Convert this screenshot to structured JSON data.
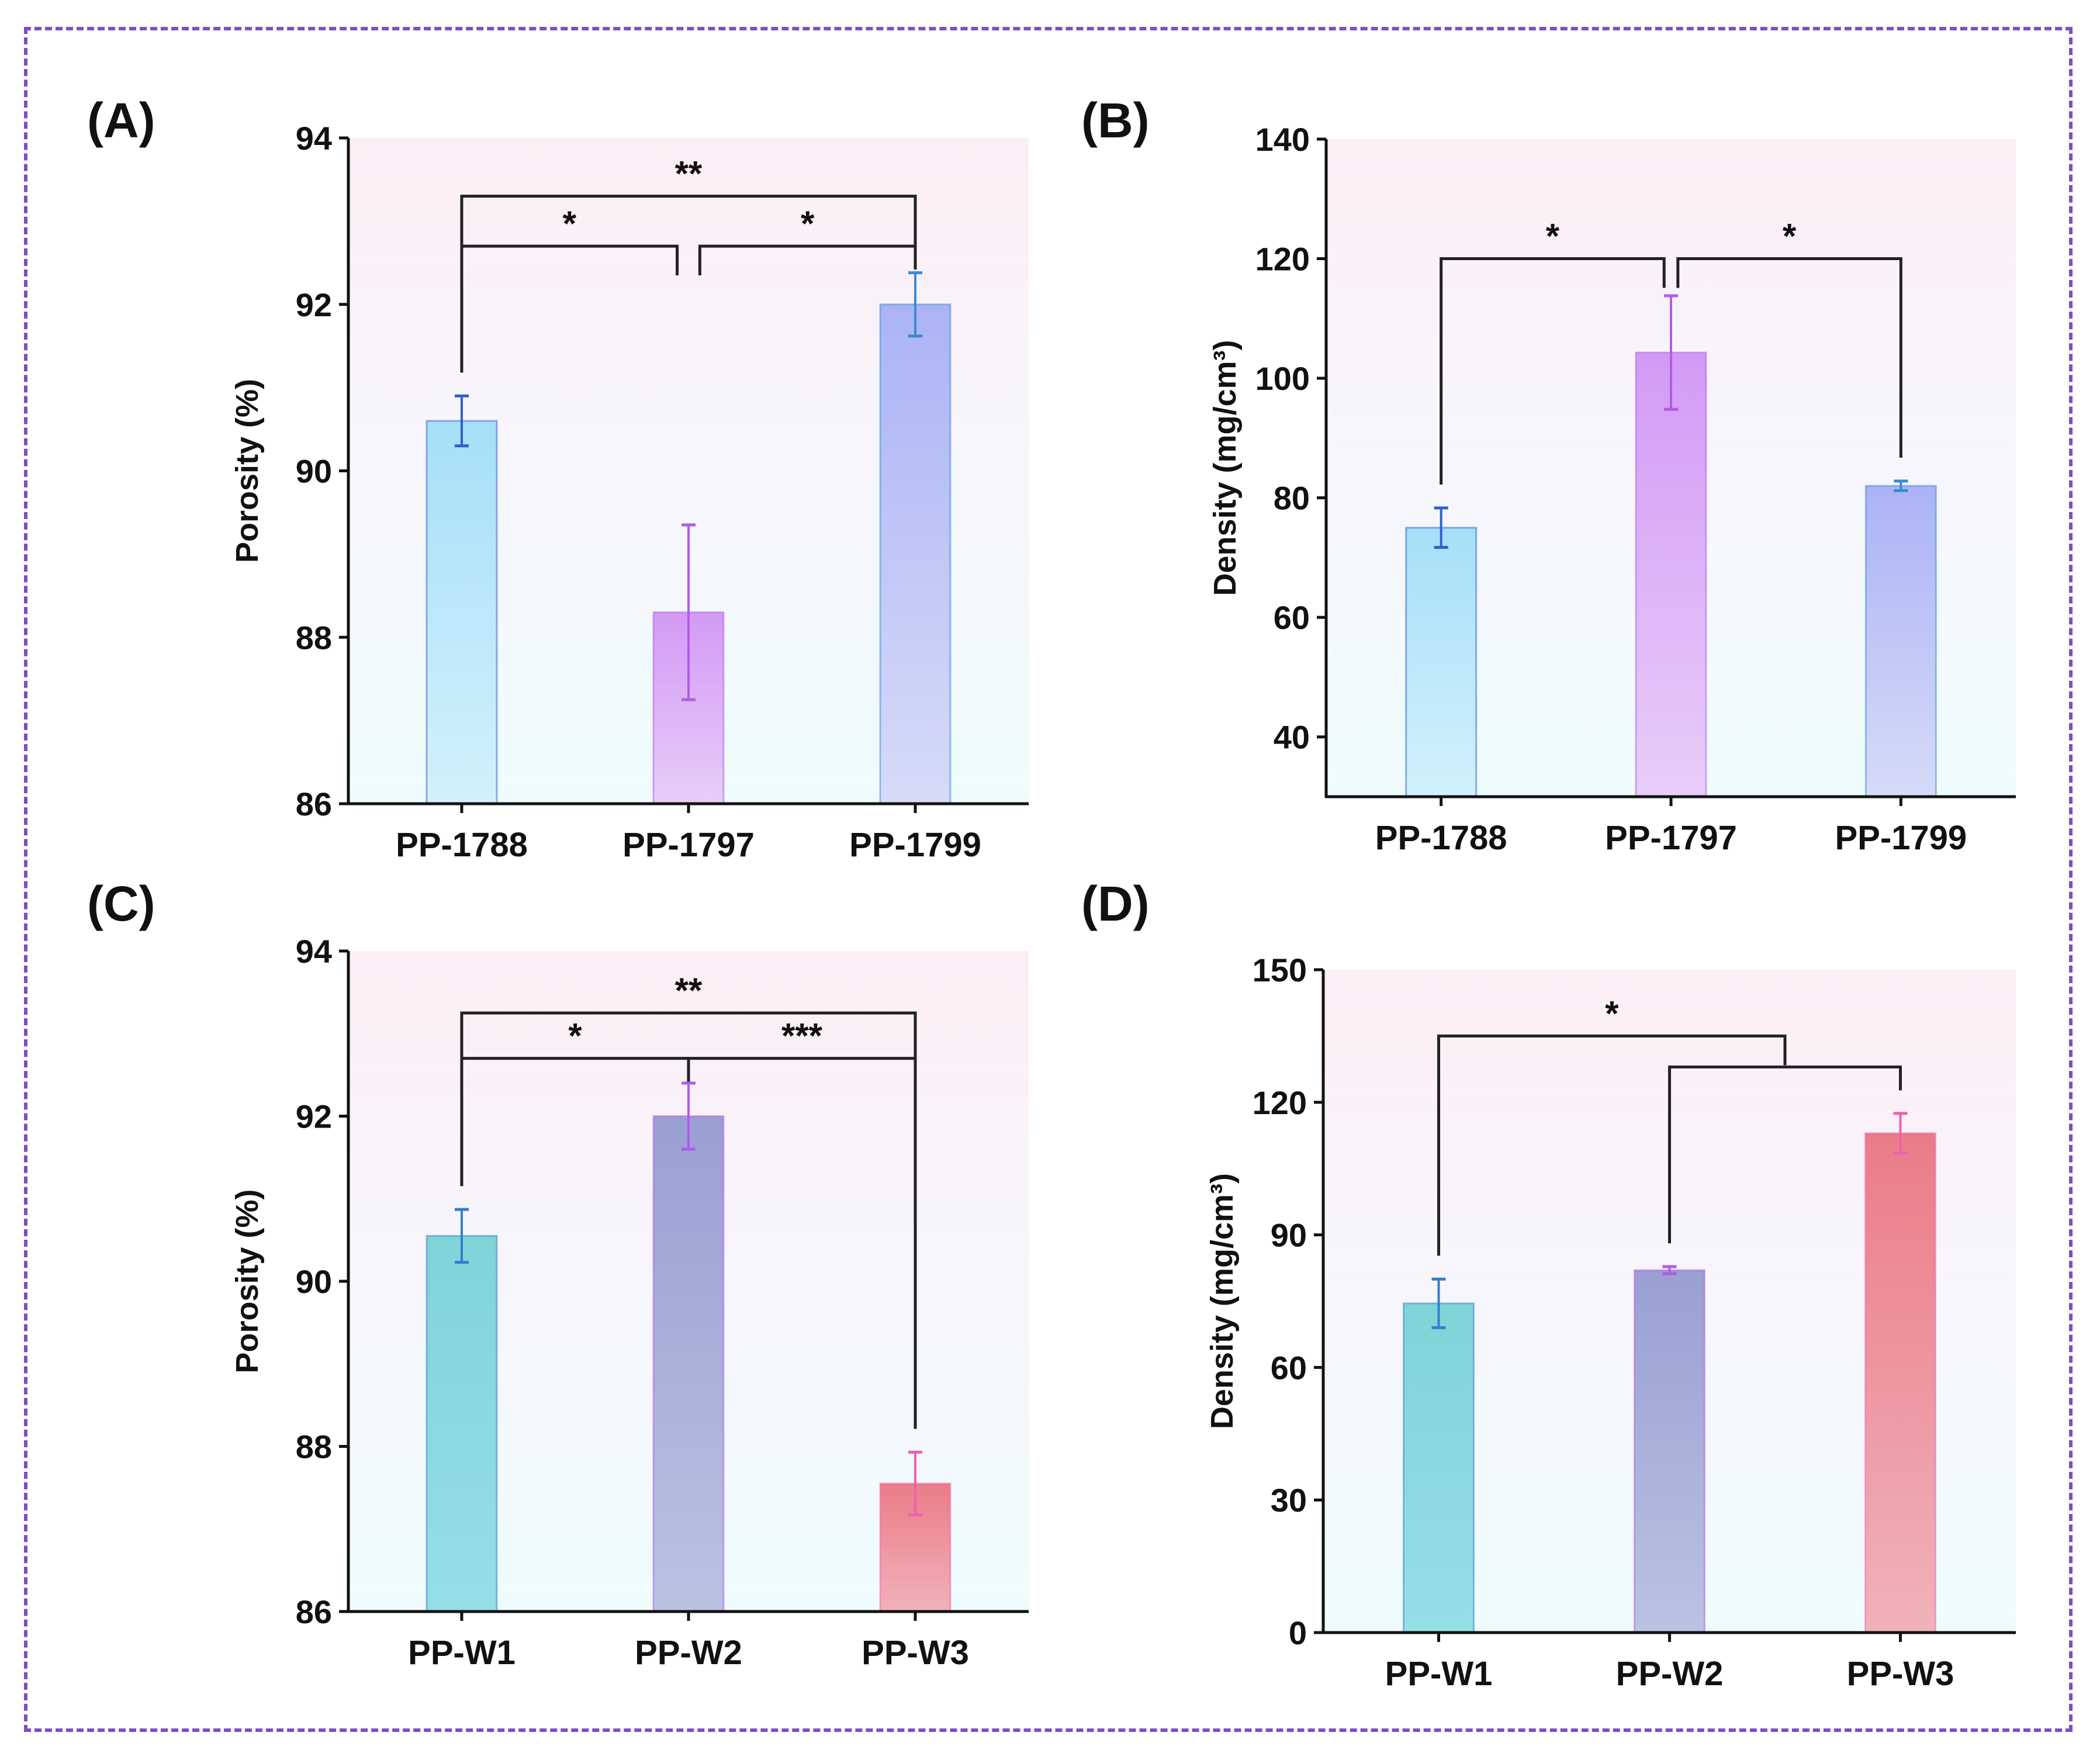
{
  "chart_data": [
    {
      "panel": "(A)",
      "type": "bar",
      "categories": [
        "PP-1788",
        "PP-1797",
        "PP-1799"
      ],
      "values": [
        90.6,
        88.3,
        92.0
      ],
      "errors": [
        0.3,
        1.05,
        0.38
      ],
      "ylabel": "Porosity (%)",
      "ylim": [
        86,
        94
      ],
      "yticks": [
        "86",
        "88",
        "90",
        "92",
        "94"
      ],
      "colors": [
        [
          "#a6dff8",
          "#d2f1fb"
        ],
        [
          "#d39af5",
          "#e8cdf9"
        ],
        [
          "#abb3f5",
          "#d6dbf8"
        ]
      ],
      "error_colors": [
        "#2f5fd0",
        "#b05be8",
        "#3a8ad0"
      ],
      "brackets": [
        {
          "from": 0,
          "to": 2,
          "level": 93.3,
          "label": "**"
        },
        {
          "from": 0,
          "to": 0.95,
          "level": 92.7,
          "label": "*"
        },
        {
          "from": 1.05,
          "to": 2,
          "level": 92.7,
          "label": "*"
        }
      ]
    },
    {
      "panel": "(B)",
      "type": "bar",
      "categories": [
        "PP-1788",
        "PP-1797",
        "PP-1799"
      ],
      "values": [
        75,
        104.3,
        82
      ],
      "errors": [
        3.3,
        9.5,
        0.8
      ],
      "ylabel": "Density (mg/cm³)",
      "ylim": [
        30,
        140
      ],
      "yticks": [
        "40",
        "60",
        "80",
        "100",
        "120",
        "140"
      ],
      "colors": [
        [
          "#a6dff8",
          "#d2f1fb"
        ],
        [
          "#d39af5",
          "#e8cdf9"
        ],
        [
          "#abb3f5",
          "#d6dbf8"
        ]
      ],
      "error_colors": [
        "#2f5fd0",
        "#b05be8",
        "#3a8ad0"
      ],
      "brackets": [
        {
          "from": 0,
          "to": 0.97,
          "level": 120,
          "label": "*"
        },
        {
          "from": 1.03,
          "to": 2,
          "level": 120,
          "label": "*"
        }
      ]
    },
    {
      "panel": "(C)",
      "type": "bar",
      "categories": [
        "PP-W1",
        "PP-W2",
        "PP-W3"
      ],
      "values": [
        90.55,
        92.0,
        87.55
      ],
      "errors": [
        0.32,
        0.4,
        0.38
      ],
      "ylabel": "Porosity (%)",
      "ylim": [
        86,
        94
      ],
      "yticks": [
        "86",
        "88",
        "90",
        "92",
        "94"
      ],
      "colors": [
        [
          "#7fd4d8",
          "#95dfe6"
        ],
        [
          "#9a9fd2",
          "#bac2e3"
        ],
        [
          "#ea7c88",
          "#f1b2ba"
        ]
      ],
      "error_colors": [
        "#2f7fd0",
        "#b05be8",
        "#f060b0"
      ],
      "brackets": [
        {
          "from": 0,
          "to": 2,
          "level": 93.25,
          "label": "**"
        },
        {
          "from": 0,
          "to": 1,
          "level": 92.7,
          "label": "*"
        },
        {
          "from": 1,
          "to": 2,
          "level": 92.7,
          "label": "***"
        }
      ]
    },
    {
      "panel": "(D)",
      "type": "bar",
      "categories": [
        "PP-W1",
        "PP-W2",
        "PP-W3"
      ],
      "values": [
        74.5,
        82,
        113
      ],
      "errors": [
        5.5,
        0.8,
        4.5
      ],
      "ylabel": "Density (mg/cm³)",
      "ylim": [
        0,
        150
      ],
      "yticks": [
        "0",
        "30",
        "60",
        "90",
        "120",
        "150"
      ],
      "colors": [
        [
          "#7fd4d8",
          "#95dfe6"
        ],
        [
          "#9a9fd2",
          "#bac2e3"
        ],
        [
          "#ea7c88",
          "#f1b2ba"
        ]
      ],
      "error_colors": [
        "#2f7fd0",
        "#b05be8",
        "#f060b0"
      ],
      "brackets": [
        {
          "from": 0,
          "to": 1.5,
          "level": 135,
          "label": "*"
        },
        {
          "from": 1,
          "to": 2,
          "level": 128,
          "label": ""
        }
      ]
    }
  ]
}
